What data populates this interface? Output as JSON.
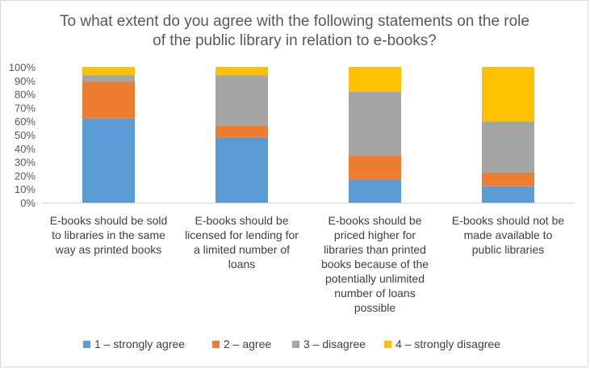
{
  "chart_data": {
    "type": "bar",
    "stacked": "percent",
    "title": "To what extent do you agree with the following statements on the role of the public library in relation to e-books?",
    "title_lines": [
      "To what extent do you agree with the following statements on the role",
      "of the public library in relation to e-books?"
    ],
    "xlabel": "",
    "ylabel": "",
    "ylim": [
      0,
      100
    ],
    "yticks": [
      "0%",
      "10%",
      "20%",
      "30%",
      "40%",
      "50%",
      "60%",
      "70%",
      "80%",
      "90%",
      "100%"
    ],
    "grid": false,
    "legend_position": "bottom",
    "categories": [
      "E-books should be sold to libraries in the same way as printed books",
      "E-books should be licensed for lending for a limited number of loans",
      "E-books should be priced higher for libraries than printed books because of the potentially unlimited number of loans possible",
      "E-books should not be made available to public libraries"
    ],
    "category_lines": [
      [
        "E-books should be sold",
        "to libraries in the same",
        "way as printed books"
      ],
      [
        "E-books should be",
        "licensed for lending for",
        "a limited number of",
        "loans"
      ],
      [
        "E-books should be",
        "priced higher for",
        "libraries than printed",
        "books because of the",
        "potentially unlimited",
        "number of loans",
        "possible"
      ],
      [
        "E-books should not be",
        "made available to",
        "public libraries"
      ]
    ],
    "series": [
      {
        "name": "1 – strongly agree",
        "color": "#5b9bd5",
        "values": [
          62,
          48,
          17,
          12
        ]
      },
      {
        "name": "2 – agree",
        "color": "#ed7d31",
        "values": [
          27,
          9,
          18,
          10
        ]
      },
      {
        "name": "3 – disagree",
        "color": "#a5a5a5",
        "values": [
          5,
          37,
          47,
          38
        ]
      },
      {
        "name": "4 – strongly disagree",
        "color": "#ffc000",
        "values": [
          6,
          6,
          18,
          40
        ]
      }
    ]
  }
}
